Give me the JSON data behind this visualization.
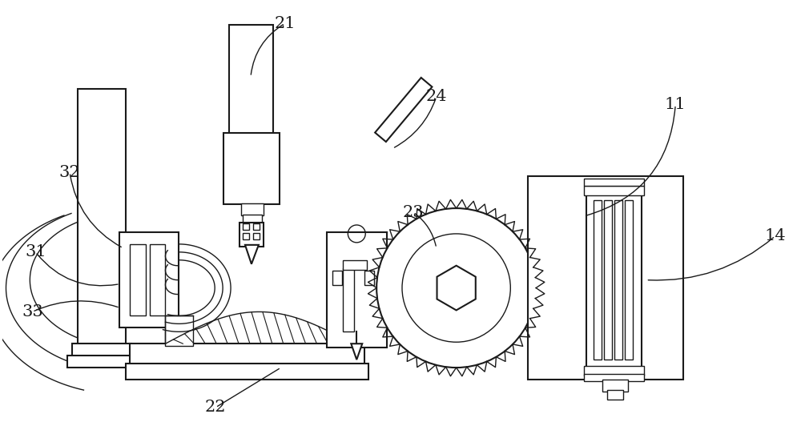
{
  "bg_color": "#ffffff",
  "line_color": "#1a1a1a",
  "lw": 1.5,
  "lw2": 1.0,
  "label_fontsize": 15
}
